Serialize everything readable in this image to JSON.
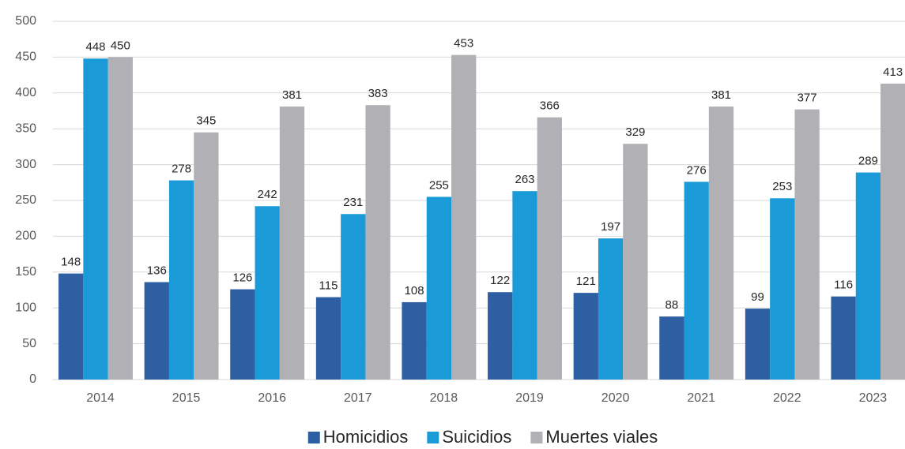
{
  "chart_data": {
    "type": "bar",
    "categories": [
      "2014",
      "2015",
      "2016",
      "2017",
      "2018",
      "2019",
      "2020",
      "2021",
      "2022",
      "2023"
    ],
    "series": [
      {
        "name": "Homicidios",
        "color": "#2e5fa3",
        "values": [
          148,
          136,
          126,
          115,
          108,
          122,
          121,
          88,
          99,
          116
        ]
      },
      {
        "name": "Suicidios",
        "color": "#1a9bd7",
        "values": [
          448,
          278,
          242,
          231,
          255,
          263,
          197,
          276,
          253,
          289
        ]
      },
      {
        "name": "Muertes viales",
        "color": "#b0b0b5",
        "values": [
          450,
          345,
          381,
          383,
          453,
          366,
          329,
          381,
          377,
          413
        ]
      }
    ],
    "ylim": [
      0,
      500
    ],
    "yticks": [
      0,
      50,
      100,
      150,
      200,
      250,
      300,
      350,
      400,
      450,
      500
    ],
    "grid": true,
    "legend": "bottom"
  }
}
